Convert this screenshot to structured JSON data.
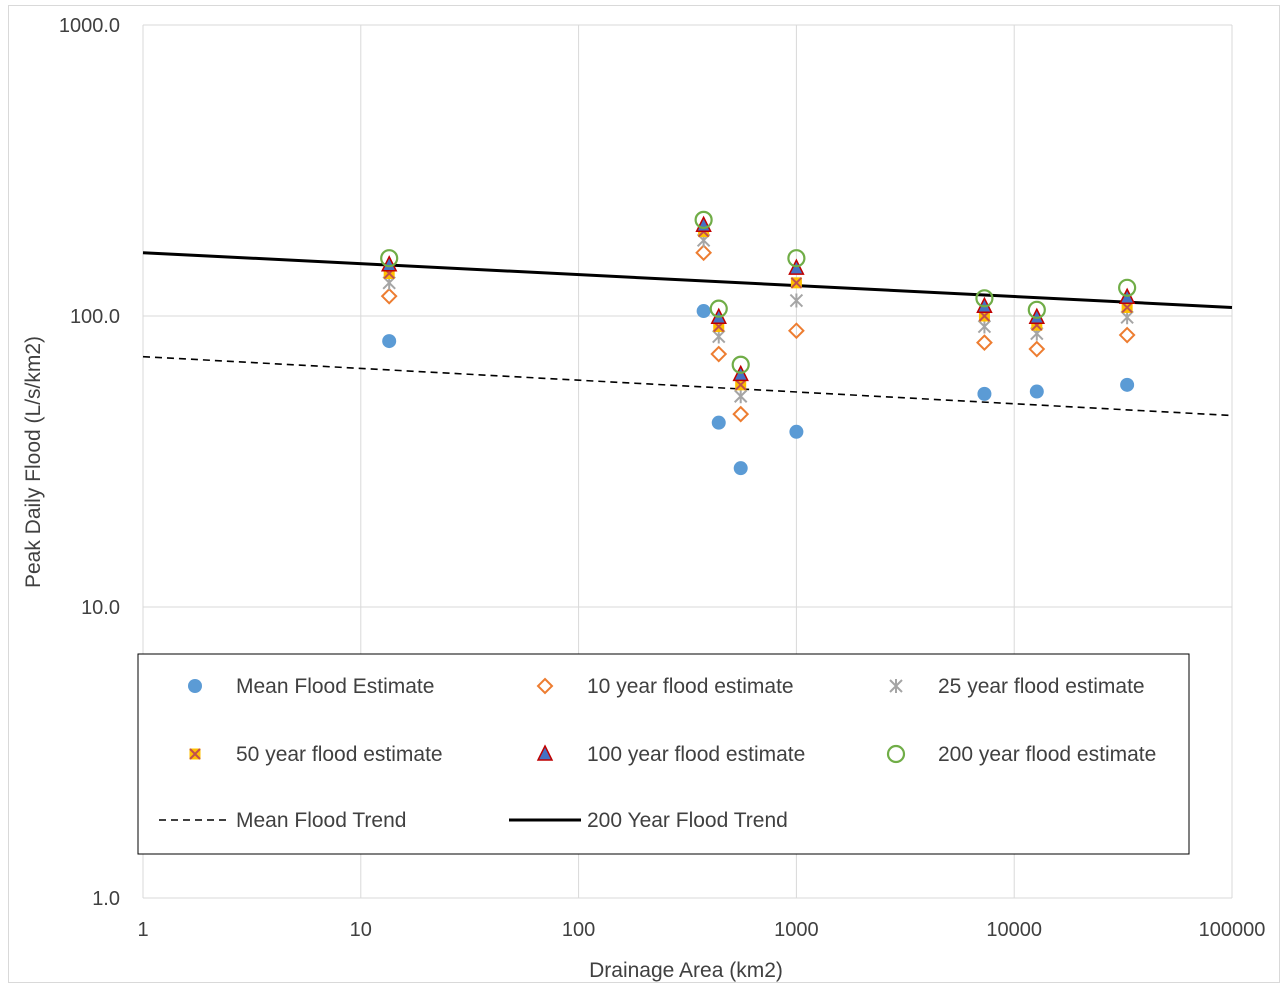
{
  "chart_data": {
    "type": "scatter",
    "title": "",
    "xlabel": "Drainage Area (km2)",
    "ylabel": "Peak Daily Flood (L/s/km2)",
    "xscale": "log",
    "yscale": "log",
    "xlim": [
      1,
      100000
    ],
    "ylim": [
      1,
      1000
    ],
    "x_tick_labels": [
      "1",
      "10",
      "100",
      "1000",
      "10000",
      "100000"
    ],
    "y_tick_labels": [
      "1.0",
      "10.0",
      "100.0",
      "1000.0"
    ],
    "grid": true,
    "legend_position": "inside-bottom",
    "x": [
      13.5,
      375,
      440,
      555,
      1000,
      7300,
      12700,
      33000
    ],
    "series": [
      {
        "name": "Mean Flood Estimate",
        "marker": "circle-filled",
        "color": "#5b9bd5",
        "values": [
          82,
          104,
          43,
          30,
          40,
          54,
          55,
          58
        ]
      },
      {
        "name": "10 year flood estimate",
        "marker": "diamond-open",
        "color": "#ed7d31",
        "values": [
          117,
          165,
          74,
          46,
          89,
          81,
          77,
          86
        ]
      },
      {
        "name": "25 year flood estimate",
        "marker": "asterisk",
        "color": "#a5a5a5",
        "values": [
          130,
          182,
          85,
          53,
          113,
          92,
          87,
          99
        ]
      },
      {
        "name": "50 year flood estimate",
        "marker": "square-x",
        "color": "#ffc000",
        "values": [
          140,
          195,
          92,
          58,
          130,
          100,
          93,
          107
        ]
      },
      {
        "name": "100 year flood estimate",
        "marker": "triangle-filled",
        "color": "#4472c4",
        "values": [
          150,
          205,
          99,
          63,
          146,
          108,
          99,
          116
        ]
      },
      {
        "name": "200 year flood estimate",
        "marker": "circle-open",
        "color": "#70ad47",
        "values": [
          158,
          214,
          106,
          68,
          158,
          115,
          105,
          125
        ]
      }
    ],
    "trendlines": [
      {
        "name": "Mean Flood Trend",
        "style": "dashed",
        "color": "#000000",
        "x": [
          1,
          100000
        ],
        "values": [
          72.5,
          45.5
        ]
      },
      {
        "name": "200 Year Flood Trend",
        "style": "solid",
        "color": "#000000",
        "x": [
          1,
          100000
        ],
        "values": [
          165,
          107
        ]
      }
    ]
  },
  "legend": {
    "items": [
      {
        "label": "Mean Flood Estimate",
        "marker": "circle-filled"
      },
      {
        "label": "10 year flood estimate",
        "marker": "diamond-open"
      },
      {
        "label": "25 year flood estimate",
        "marker": "asterisk"
      },
      {
        "label": "50 year flood estimate",
        "marker": "square-x"
      },
      {
        "label": "100 year flood estimate",
        "marker": "triangle-filled"
      },
      {
        "label": "200 year flood estimate",
        "marker": "circle-open"
      },
      {
        "label": "Mean Flood Trend",
        "marker": "dashed-line"
      },
      {
        "label": "200 Year Flood Trend",
        "marker": "solid-line"
      }
    ]
  }
}
